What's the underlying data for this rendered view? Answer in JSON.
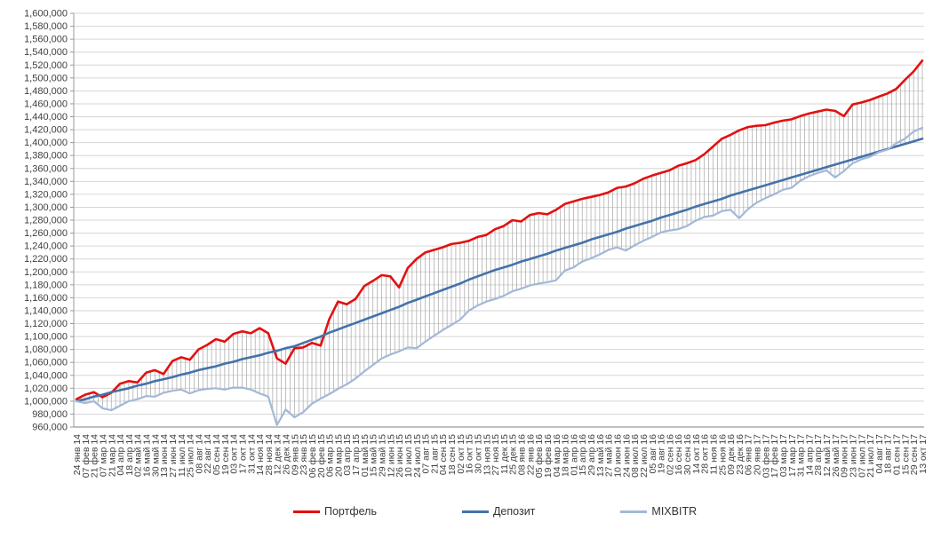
{
  "chart_data": {
    "type": "line",
    "title": "",
    "xlabel": "",
    "ylabel": "",
    "grid": true,
    "high_low_lines": true,
    "legend_position": "bottom",
    "y_axis": {
      "min": 960000,
      "max": 1600000,
      "step": 20000,
      "format": "#,##0"
    },
    "x_labels": [
      "24 янв 14",
      "07 фев 14",
      "21 фев 14",
      "07 мар 14",
      "21 мар 14",
      "04 апр 14",
      "18 апр 14",
      "02 май 14",
      "16 май 14",
      "30 май 14",
      "13 июн 14",
      "27 июн 14",
      "11 июл 14",
      "25 июл 14",
      "08 авг 14",
      "22 авг 14",
      "05 сен 14",
      "19 сен 14",
      "03 окт 14",
      "17 окт 14",
      "31 окт 14",
      "14 ноя 14",
      "28 ноя 14",
      "12 дек 14",
      "26 дек 14",
      "09 янв 15",
      "23 янв 15",
      "06 фев 15",
      "20 фев 15",
      "06 мар 15",
      "20 мар 15",
      "03 апр 15",
      "17 апр 15",
      "01 май 15",
      "15 май 15",
      "29 май 15",
      "12 июн 15",
      "26 июн 15",
      "10 июл 15",
      "24 июл 15",
      "07 авг 15",
      "21 авг 15",
      "04 сен 15",
      "18 сен 15",
      "02 окт 15",
      "16 окт 15",
      "30 окт 15",
      "13 ноя 15",
      "27 ноя 15",
      "11 дек 15",
      "25 дек 15",
      "08 янв 16",
      "22 янв 16",
      "05 фев 16",
      "19 фев 16",
      "04 мар 16",
      "18 мар 16",
      "01 апр 16",
      "15 апр 16",
      "29 апр 16",
      "13 май 16",
      "27 май 16",
      "10 июн 16",
      "24 июн 16",
      "08 июл 16",
      "22 июл 16",
      "05 авг 16",
      "19 авг 16",
      "02 сен 16",
      "16 сен 16",
      "30 сен 16",
      "14 окт 16",
      "28 окт 16",
      "11 ноя 16",
      "25 ноя 16",
      "09 дек 16",
      "23 дек 16",
      "06 янв 17",
      "20 янв 17",
      "03 фев 17",
      "17 фев 17",
      "03 мар 17",
      "17 мар 17",
      "31 мар 17",
      "14 апр 17",
      "28 апр 17",
      "12 май 17",
      "26 май 17",
      "09 июн 17",
      "23 июн 17",
      "07 июл 17",
      "21 июл 17",
      "04 авг 17",
      "18 авг 17",
      "01 сен 17",
      "15 сен 17",
      "29 сен 17",
      "13 окт 17"
    ],
    "series": [
      {
        "name": "Портфель",
        "color": "#e31010",
        "width": 2.6,
        "values": [
          1003000,
          1010000,
          1014000,
          1006000,
          1013000,
          1027000,
          1031000,
          1029000,
          1044000,
          1048000,
          1042000,
          1062000,
          1068000,
          1064000,
          1080000,
          1087000,
          1096000,
          1092000,
          1104000,
          1108000,
          1105000,
          1113000,
          1105000,
          1066000,
          1058000,
          1082000,
          1083000,
          1090000,
          1086000,
          1127000,
          1154000,
          1150000,
          1158000,
          1178000,
          1186000,
          1195000,
          1193000,
          1176000,
          1206000,
          1220000,
          1230000,
          1234000,
          1238000,
          1243000,
          1245000,
          1248000,
          1254000,
          1257000,
          1266000,
          1271000,
          1280000,
          1278000,
          1288000,
          1291000,
          1289000,
          1296000,
          1305000,
          1309000,
          1313000,
          1316000,
          1319000,
          1323000,
          1330000,
          1332000,
          1337000,
          1344000,
          1349000,
          1353000,
          1357000,
          1364000,
          1368000,
          1373000,
          1382000,
          1394000,
          1406000,
          1412000,
          1419000,
          1424000,
          1426000,
          1427000,
          1431000,
          1434000,
          1436000,
          1441000,
          1445000,
          1448000,
          1451000,
          1449000,
          1441000,
          1459000,
          1462000,
          1466000,
          1471000,
          1476000,
          1483000,
          1497000,
          1510000,
          1527000
        ]
      },
      {
        "name": "Депозит",
        "color": "#4472a8",
        "width": 2.6,
        "values": [
          1000000,
          1003000,
          1007000,
          1010000,
          1014000,
          1017000,
          1020000,
          1024000,
          1027000,
          1031000,
          1034000,
          1037000,
          1041000,
          1044000,
          1048000,
          1051000,
          1054000,
          1058000,
          1061000,
          1065000,
          1068000,
          1071000,
          1075000,
          1078000,
          1082000,
          1085000,
          1090000,
          1095000,
          1100000,
          1106000,
          1111000,
          1116000,
          1121000,
          1126000,
          1131000,
          1136000,
          1141000,
          1146000,
          1152000,
          1157000,
          1162000,
          1167000,
          1172000,
          1177000,
          1182000,
          1188000,
          1193000,
          1198000,
          1203000,
          1207000,
          1211000,
          1216000,
          1220000,
          1224000,
          1228000,
          1233000,
          1237000,
          1241000,
          1245000,
          1250000,
          1254000,
          1258000,
          1262000,
          1267000,
          1271000,
          1275000,
          1279000,
          1284000,
          1288000,
          1292000,
          1296000,
          1301000,
          1305000,
          1309000,
          1313000,
          1318000,
          1322000,
          1326000,
          1330000,
          1334000,
          1338000,
          1342000,
          1346000,
          1350000,
          1354000,
          1358000,
          1362000,
          1366000,
          1370000,
          1374000,
          1378000,
          1382000,
          1386000,
          1390000,
          1394000,
          1398000,
          1402000,
          1406000
        ]
      },
      {
        "name": "MIXBITR",
        "color": "#a3b8d8",
        "width": 2.2,
        "values": [
          1000000,
          997000,
          1000000,
          989000,
          986000,
          993000,
          1000000,
          1003000,
          1008000,
          1007000,
          1013000,
          1016000,
          1018000,
          1012000,
          1017000,
          1019000,
          1020000,
          1018000,
          1021000,
          1021000,
          1018000,
          1012000,
          1007000,
          963000,
          987000,
          975000,
          983000,
          996000,
          1004000,
          1011000,
          1019000,
          1026000,
          1035000,
          1046000,
          1056000,
          1066000,
          1072000,
          1077000,
          1083000,
          1082000,
          1092000,
          1101000,
          1110000,
          1118000,
          1126000,
          1140000,
          1148000,
          1154000,
          1158000,
          1163000,
          1170000,
          1174000,
          1179000,
          1182000,
          1184000,
          1187000,
          1202000,
          1207000,
          1216000,
          1221000,
          1227000,
          1234000,
          1238000,
          1233000,
          1241000,
          1248000,
          1254000,
          1261000,
          1264000,
          1266000,
          1271000,
          1279000,
          1285000,
          1287000,
          1294000,
          1296000,
          1283000,
          1297000,
          1307000,
          1314000,
          1320000,
          1327000,
          1330000,
          1341000,
          1348000,
          1353000,
          1357000,
          1346000,
          1356000,
          1368000,
          1374000,
          1378000,
          1385000,
          1389000,
          1399000,
          1406000,
          1417000,
          1423000
        ]
      }
    ],
    "colors": {
      "gridline": "#d6d6d6",
      "axis": "#9a9a9a",
      "bottom_axis": "#808080",
      "hatch": "#ababab",
      "tick_text": "#404040"
    }
  },
  "legend": {
    "items": [
      {
        "label": "Портфель"
      },
      {
        "label": "Депозит"
      },
      {
        "label": "MIXBITR"
      }
    ]
  }
}
